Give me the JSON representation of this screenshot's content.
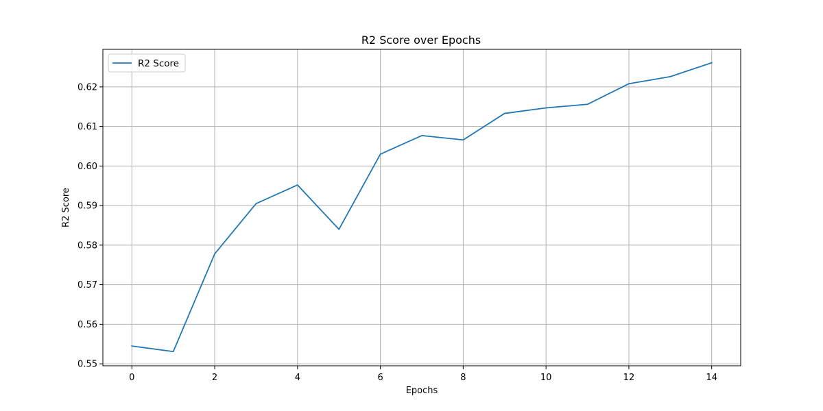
{
  "chart_data": {
    "type": "line",
    "title": "R2 Score over Epochs",
    "xlabel": "Epochs",
    "ylabel": "R2 Score",
    "xlim": [
      -0.7,
      14.7
    ],
    "ylim": [
      0.5495,
      0.6295
    ],
    "xticks": [
      0,
      2,
      4,
      6,
      8,
      10,
      12,
      14
    ],
    "xtick_labels": [
      "0",
      "2",
      "4",
      "6",
      "8",
      "10",
      "12",
      "14"
    ],
    "yticks": [
      0.55,
      0.56,
      0.57,
      0.58,
      0.59,
      0.6,
      0.61,
      0.62
    ],
    "ytick_labels": [
      "0.55",
      "0.56",
      "0.57",
      "0.58",
      "0.59",
      "0.60",
      "0.61",
      "0.62"
    ],
    "grid": true,
    "legend_position": "top-left",
    "series": [
      {
        "name": "R2 Score",
        "color": "#1f77b4",
        "x": [
          0,
          1,
          2,
          3,
          4,
          5,
          6,
          7,
          8,
          9,
          10,
          11,
          12,
          13,
          14
        ],
        "y": [
          0.5545,
          0.5531,
          0.5778,
          0.5905,
          0.5952,
          0.584,
          0.603,
          0.6077,
          0.6066,
          0.6133,
          0.6147,
          0.6156,
          0.6208,
          0.6226,
          0.6261
        ]
      }
    ]
  }
}
